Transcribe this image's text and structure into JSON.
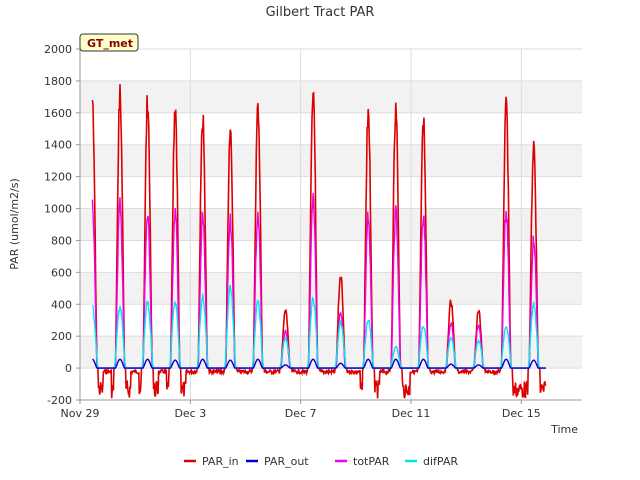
{
  "chart_data": {
    "type": "line",
    "title": "Gilbert Tract PAR",
    "badge": "GT_met",
    "xlabel": "Time",
    "ylabel": "PAR (umol/m2/s)",
    "xlim": [
      0,
      18.2
    ],
    "ylim": [
      -200,
      2000
    ],
    "yticks": [
      -200,
      0,
      200,
      400,
      600,
      800,
      1000,
      1200,
      1400,
      1600,
      1800,
      2000
    ],
    "xticks": [
      {
        "label": "Nov 29",
        "value": 0
      },
      {
        "label": "Dec 3",
        "value": 4
      },
      {
        "label": "Dec 7",
        "value": 8
      },
      {
        "label": "Dec 11",
        "value": 12
      },
      {
        "label": "Dec 15",
        "value": 16
      }
    ],
    "grid": true,
    "legend_position": "bottom",
    "days": [
      {
        "day": 0.45,
        "PAR_in": 1770,
        "PAR_out": 55,
        "totPAR": 1060,
        "difPAR": 400
      },
      {
        "day": 1.45,
        "PAR_in": 1800,
        "PAR_out": 55,
        "totPAR": 1080,
        "difPAR": 400
      },
      {
        "day": 2.45,
        "PAR_in": 1760,
        "PAR_out": 55,
        "totPAR": 1030,
        "difPAR": 440
      },
      {
        "day": 3.45,
        "PAR_in": 1750,
        "PAR_out": 50,
        "totPAR": 1030,
        "difPAR": 440
      },
      {
        "day": 4.45,
        "PAR_in": 1630,
        "PAR_out": 55,
        "totPAR": 1010,
        "difPAR": 470
      },
      {
        "day": 5.45,
        "PAR_in": 1590,
        "PAR_out": 50,
        "totPAR": 970,
        "difPAR": 540
      },
      {
        "day": 6.45,
        "PAR_in": 1710,
        "PAR_out": 55,
        "totPAR": 1030,
        "difPAR": 430
      },
      {
        "day": 7.45,
        "PAR_in": 390,
        "PAR_out": 20,
        "totPAR": 240,
        "difPAR": 200
      },
      {
        "day": 8.45,
        "PAR_in": 1860,
        "PAR_out": 55,
        "totPAR": 1110,
        "difPAR": 460
      },
      {
        "day": 9.45,
        "PAR_in": 620,
        "PAR_out": 30,
        "totPAR": 370,
        "difPAR": 300
      },
      {
        "day": 10.45,
        "PAR_in": 1670,
        "PAR_out": 55,
        "totPAR": 1010,
        "difPAR": 320
      },
      {
        "day": 11.45,
        "PAR_in": 1720,
        "PAR_out": 55,
        "totPAR": 1030,
        "difPAR": 140
      },
      {
        "day": 12.45,
        "PAR_in": 1660,
        "PAR_out": 55,
        "totPAR": 1000,
        "difPAR": 280
      },
      {
        "day": 13.45,
        "PAR_in": 440,
        "PAR_out": 25,
        "totPAR": 300,
        "difPAR": 200
      },
      {
        "day": 14.45,
        "PAR_in": 380,
        "PAR_out": 20,
        "totPAR": 290,
        "difPAR": 180
      },
      {
        "day": 15.45,
        "PAR_in": 1740,
        "PAR_out": 55,
        "totPAR": 1020,
        "difPAR": 280
      },
      {
        "day": 16.45,
        "PAR_in": 1480,
        "PAR_out": 50,
        "totPAR": 860,
        "difPAR": 420
      }
    ],
    "series": [
      {
        "name": "PAR_in",
        "color": "#dd0000",
        "key": "PAR_in"
      },
      {
        "name": "PAR_out",
        "color": "#0000cc",
        "key": "PAR_out"
      },
      {
        "name": "totPAR",
        "color": "#ee00ee",
        "key": "totPAR"
      },
      {
        "name": "difPAR",
        "color": "#00e5ee",
        "key": "difPAR"
      }
    ]
  }
}
